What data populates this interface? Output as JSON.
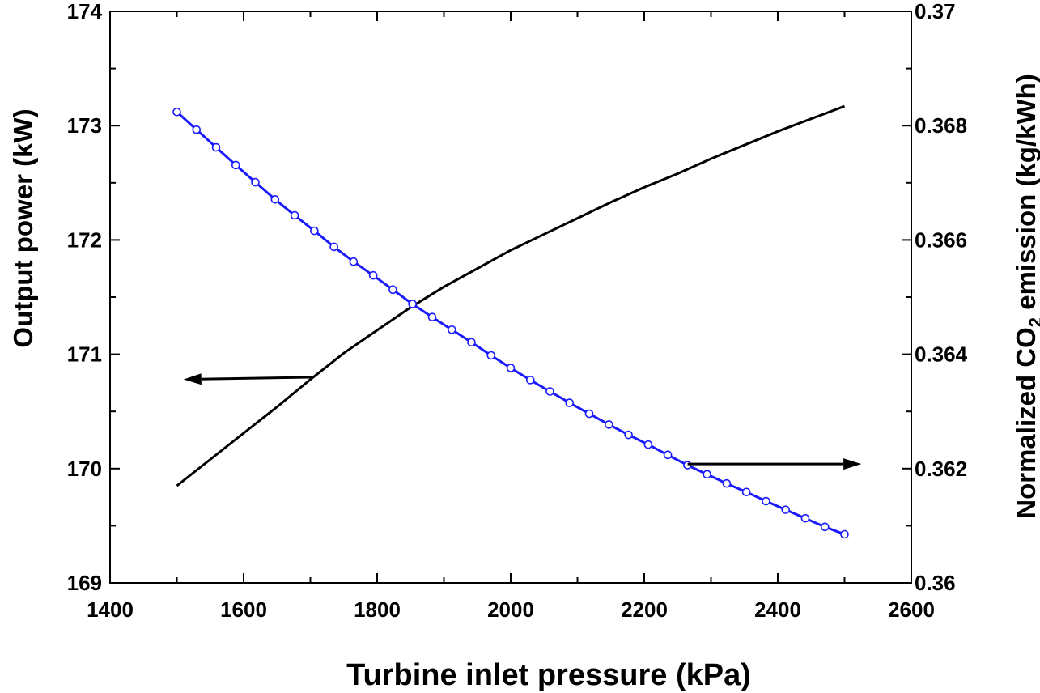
{
  "chart_data": {
    "type": "line",
    "xlabel": "Turbine inlet pressure (kPa)",
    "ylabel_left": "Output power (kW)",
    "ylabel_right_parts": {
      "pre": "Normalized CO",
      "sub": "2",
      "post": " emission (kg/kWh)"
    },
    "xlim": [
      1400,
      2600
    ],
    "ylim_left": [
      169,
      174
    ],
    "ylim_right": [
      0.36,
      0.37
    ],
    "xticks": [
      1400,
      1600,
      1800,
      2000,
      2200,
      2400,
      2600
    ],
    "xtick_labels": [
      "1400",
      "1600",
      "1800",
      "2000",
      "2200",
      "2400",
      "2600"
    ],
    "yticks_left": [
      169,
      170,
      171,
      172,
      173,
      174
    ],
    "ytick_labels_left": [
      "169",
      "170",
      "171",
      "172",
      "173",
      "174"
    ],
    "yticks_right": [
      0.36,
      0.362,
      0.364,
      0.366,
      0.368,
      0.37
    ],
    "ytick_labels_right": [
      "0.36",
      "0.362",
      "0.364",
      "0.366",
      "0.368",
      "0.37"
    ],
    "series": [
      {
        "name": "Output power",
        "axis": "left",
        "color": "#000000",
        "marker": "none",
        "x": [
          1500,
          1550,
          1600,
          1650,
          1700,
          1750,
          1800,
          1850,
          1900,
          1950,
          2000,
          2050,
          2100,
          2150,
          2200,
          2250,
          2300,
          2350,
          2400,
          2450,
          2500
        ],
        "y": [
          169.85,
          170.08,
          170.31,
          170.54,
          170.78,
          171.01,
          171.21,
          171.41,
          171.59,
          171.75,
          171.91,
          172.05,
          172.19,
          172.33,
          172.46,
          172.58,
          172.71,
          172.83,
          172.95,
          173.06,
          173.17
        ]
      },
      {
        "name": "Normalized CO2 emission",
        "axis": "right",
        "color": "#1a1aff",
        "marker": "circle",
        "x": [
          1500,
          1529.4,
          1558.8,
          1588.2,
          1617.6,
          1647.1,
          1676.5,
          1705.9,
          1735.3,
          1764.7,
          1794.1,
          1823.5,
          1852.9,
          1882.4,
          1911.8,
          1941.2,
          1970.6,
          2000,
          2029.4,
          2058.8,
          2088.2,
          2117.6,
          2147.1,
          2176.5,
          2205.9,
          2235.3,
          2264.7,
          2294.1,
          2323.5,
          2352.9,
          2382.4,
          2411.8,
          2441.2,
          2470.6,
          2500
        ],
        "y": [
          0.36824,
          0.36793,
          0.36762,
          0.36731,
          0.36701,
          0.36671,
          0.36643,
          0.36616,
          0.36588,
          0.36562,
          0.36538,
          0.36513,
          0.36488,
          0.36465,
          0.36443,
          0.36421,
          0.36398,
          0.36376,
          0.36355,
          0.36335,
          0.36315,
          0.36296,
          0.36277,
          0.36259,
          0.36242,
          0.36224,
          0.36206,
          0.3619,
          0.36174,
          0.36159,
          0.36143,
          0.36128,
          0.36113,
          0.36098,
          0.36085
        ]
      }
    ],
    "annotations": [
      {
        "name": "left-arrow",
        "from": [
          1705,
          170.8
        ],
        "to": [
          1510,
          170.78
        ],
        "meaning": "points to left axis"
      },
      {
        "name": "right-arrow",
        "from": [
          2265,
          170.04
        ],
        "to": [
          2525,
          170.04
        ],
        "meaning": "points to right axis"
      }
    ]
  }
}
